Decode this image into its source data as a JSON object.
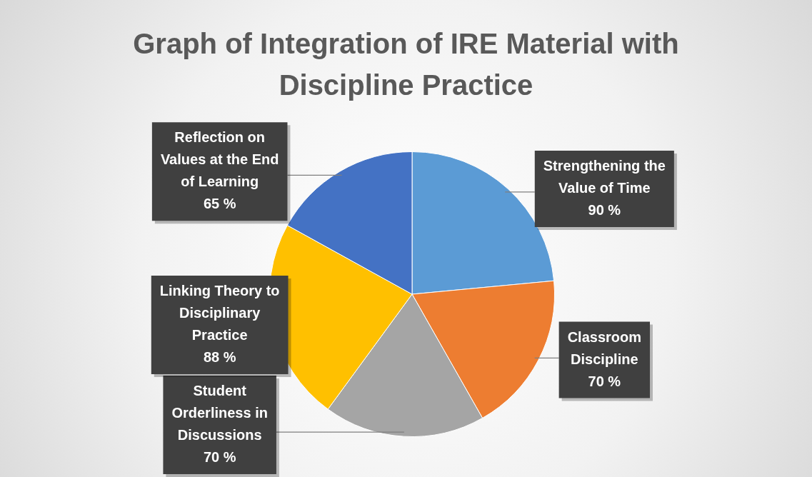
{
  "chart_data": {
    "type": "pie",
    "title": "Graph of Integration of IRE Material with Discipline Practice",
    "categories": [
      "Strengthening the Value of Time",
      "Classroom Discipline",
      "Student Orderliness in Discussions",
      "Linking Theory to Disciplinary Practice",
      "Reflection on Values at the End of Learning"
    ],
    "values": [
      90,
      70,
      70,
      88,
      65
    ],
    "value_labels": [
      "90 %",
      "70 %",
      "70 %",
      "88 %",
      "65 %"
    ],
    "colors": [
      "#5b9bd5",
      "#ed7d31",
      "#a5a5a5",
      "#ffc000",
      "#4472c4"
    ],
    "legend": false
  }
}
